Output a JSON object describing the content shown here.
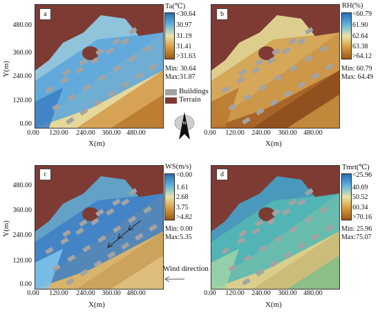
{
  "colors": {
    "terrain": "#7d3b34",
    "buildings": "#a3a3a3",
    "warm_ground": "#c78a3a",
    "cool_ground": "#4f9fd6"
  },
  "axes": {
    "y_ticks": [
      "480.00",
      "360.00",
      "240.00",
      "120.00",
      "0.00"
    ],
    "x_ticks": [
      "0.00",
      "120.00",
      "240.00",
      "360.00",
      "480.00"
    ],
    "y_title": "Y(m)",
    "x_title": "X(m)"
  },
  "legend": {
    "buildings": "Buildings",
    "terrain": "Terrain",
    "north_icon": "north-arrow-icon"
  },
  "wind": {
    "label": "Wind direction",
    "icon": "arrow-left-icon"
  },
  "panels": [
    {
      "letter": "a",
      "variable": "Ta(℃)",
      "labels": [
        "<30.64",
        "30.97",
        "31.19",
        "31.41",
        ">31.63"
      ],
      "colors": [
        "#2a6db5",
        "#61b3e0",
        "#e8e4a8",
        "#d89b40",
        "#9a5a14"
      ],
      "min": "Min: 30.64",
      "max": "Max:31.87"
    },
    {
      "letter": "b",
      "variable": "RH(%)",
      "labels": [
        "<60.79",
        "61.90",
        "62.64",
        "63.38",
        ">64.12"
      ],
      "colors": [
        "#2a6db5",
        "#61b3e0",
        "#e8e4a8",
        "#d89b40",
        "#9a5a14"
      ],
      "min": "Min: 60.79",
      "max": "Max: 64.49"
    },
    {
      "letter": "c",
      "variable": "WS(m/s)",
      "labels": [
        "<0.00",
        "1.61",
        "2.68",
        "3.75",
        ">4.82"
      ],
      "colors": [
        "#2a6db5",
        "#61b3e0",
        "#e8e4a8",
        "#d89b40",
        "#9a5a14"
      ],
      "min": "Min: 0.00",
      "max": "Max:5.35"
    },
    {
      "letter": "d",
      "variable": "Tmrt(℃)",
      "labels": [
        "<25.96",
        "40.69",
        "50.52",
        "60.34",
        ">70.16"
      ],
      "colors": [
        "#2a6db5",
        "#61b3e0",
        "#e8e4a8",
        "#d89b40",
        "#9a5a14"
      ],
      "min": "Min: 25.96",
      "max": "Max:75.07"
    }
  ]
}
